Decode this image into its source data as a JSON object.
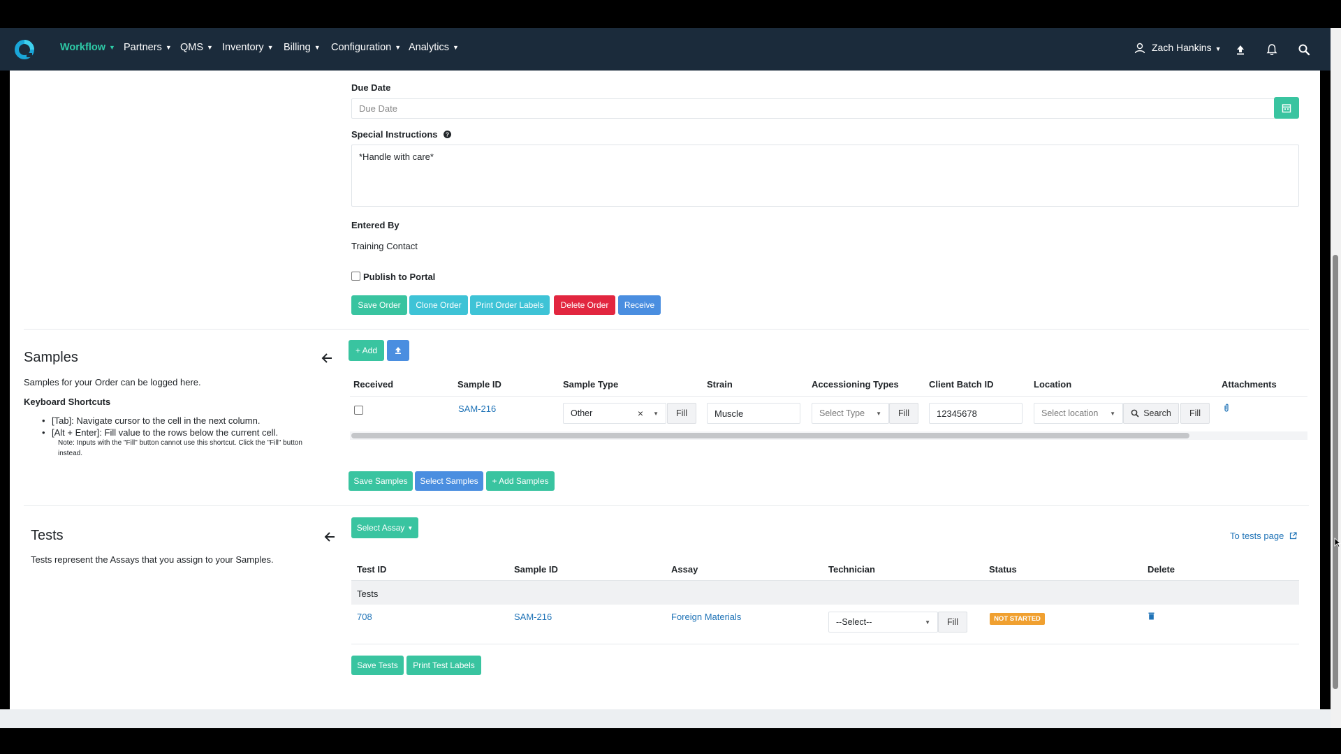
{
  "nav": {
    "items": [
      {
        "label": "Workflow",
        "active": true
      },
      {
        "label": "Partners"
      },
      {
        "label": "QMS"
      },
      {
        "label": "Inventory"
      },
      {
        "label": "Billing"
      },
      {
        "label": "Configuration"
      },
      {
        "label": "Analytics"
      }
    ],
    "user": "Zach Hankins",
    "icons": [
      "user-icon",
      "upload-icon",
      "bell-icon",
      "search-icon"
    ]
  },
  "order": {
    "due_date_label": "Due Date",
    "due_date_placeholder": "Due Date",
    "special_instructions_label": "Special Instructions",
    "special_instructions_value": "*Handle with care*",
    "entered_by_label": "Entered By",
    "entered_by_value": "Training Contact",
    "publish_label": "Publish to Portal",
    "buttons": {
      "save": "Save Order",
      "clone": "Clone Order",
      "print": "Print Order Labels",
      "delete": "Delete Order",
      "receive": "Receive"
    }
  },
  "samples": {
    "title": "Samples",
    "description": "Samples for your Order can be logged here.",
    "shortcuts_title": "Keyboard Shortcuts",
    "shortcut_1": "[Tab]: Navigate cursor to the cell in the next column.",
    "shortcut_2": "[Alt + Enter]: Fill value to the rows below the current cell.",
    "shortcut_note_1": "Note: Inputs with the \"Fill\" button cannot use this shortcut. Click the \"Fill\" button",
    "shortcut_note_2": "instead.",
    "add_label": "+ Add",
    "columns": [
      "Received",
      "Sample ID",
      "Sample Type",
      "Strain",
      "Accessioning Types",
      "Client Batch ID",
      "Location",
      "Attachments"
    ],
    "row": {
      "sample_id": "SAM-216",
      "sample_type": "Other",
      "strain": "Muscle",
      "accessioning_placeholder": "Select Type",
      "client_batch_id": "12345678",
      "location_placeholder": "Select location",
      "search_label": "Search",
      "fill_label": "Fill"
    },
    "buttons": {
      "save": "Save Samples",
      "select": "Select Samples",
      "add": "+ Add Samples"
    }
  },
  "tests": {
    "title": "Tests",
    "description": "Tests represent the Assays that you assign to your Samples.",
    "select_assay": "Select Assay",
    "to_tests_page": "To tests page",
    "columns": [
      "Test ID",
      "Sample ID",
      "Assay",
      "Technician",
      "Status",
      "Delete"
    ],
    "group_label": "Tests",
    "row": {
      "test_id": "708",
      "sample_id": "SAM-216",
      "assay": "Foreign Materials",
      "technician_placeholder": "--Select--",
      "fill_label": "Fill",
      "status": "NOT STARTED"
    },
    "buttons": {
      "save": "Save Tests",
      "print": "Print Test Labels"
    }
  },
  "colors": {
    "navbar": "#1b2b3b",
    "accent_teal": "#39c4a0",
    "accent_cyan": "#3ec3d6",
    "danger": "#e2263f",
    "primary": "#4a8ee0",
    "link": "#1f73b7",
    "status_orange": "#f0a030"
  }
}
